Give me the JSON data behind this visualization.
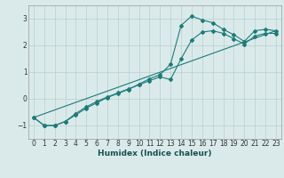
{
  "xlabel": "Humidex (Indice chaleur)",
  "bg_color": "#daeaea",
  "grid_color": "#b8d0d0",
  "line_color": "#1e7b7b",
  "xlim": [
    -0.5,
    23.5
  ],
  "ylim": [
    -1.5,
    3.5
  ],
  "yticks": [
    -1,
    0,
    1,
    2,
    3
  ],
  "xticks": [
    0,
    1,
    2,
    3,
    4,
    5,
    6,
    7,
    8,
    9,
    10,
    11,
    12,
    13,
    14,
    15,
    16,
    17,
    18,
    19,
    20,
    21,
    22,
    23
  ],
  "line1_x": [
    0,
    1,
    2,
    3,
    4,
    5,
    6,
    7,
    8,
    9,
    10,
    11,
    12,
    13,
    14,
    15,
    16,
    17,
    18,
    19,
    20,
    21,
    22,
    23
  ],
  "line1_y": [
    -0.7,
    -1.0,
    -1.0,
    -0.85,
    -0.6,
    -0.35,
    -0.15,
    0.05,
    0.2,
    0.35,
    0.55,
    0.75,
    0.9,
    1.3,
    2.75,
    3.1,
    2.95,
    2.85,
    2.6,
    2.4,
    2.15,
    2.55,
    2.6,
    2.55
  ],
  "line2_x": [
    0,
    1,
    2,
    3,
    4,
    5,
    6,
    7,
    8,
    9,
    10,
    11,
    12,
    13,
    14,
    15,
    16,
    17,
    18,
    19,
    20,
    21,
    22,
    23
  ],
  "line2_y": [
    -0.7,
    -1.0,
    -1.0,
    -0.85,
    -0.55,
    -0.3,
    -0.1,
    0.07,
    0.22,
    0.37,
    0.52,
    0.68,
    0.82,
    0.72,
    1.5,
    2.2,
    2.5,
    2.55,
    2.45,
    2.25,
    2.05,
    2.35,
    2.45,
    2.45
  ],
  "line3_x": [
    0,
    23
  ],
  "line3_y": [
    -0.7,
    2.55
  ]
}
